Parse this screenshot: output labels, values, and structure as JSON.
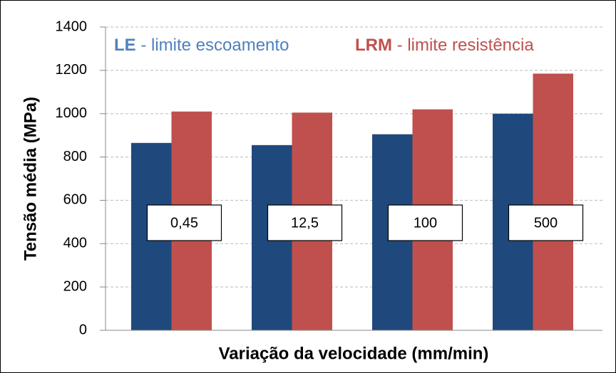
{
  "chart_data": {
    "type": "bar",
    "ylabel": "Tensão média (MPa)",
    "xlabel": "Variação da velocidade (mm/min)",
    "categories": [
      "0,45",
      "12,5",
      "100",
      "500"
    ],
    "series": [
      {
        "name": "LE",
        "legend_text": " - limite escoamento",
        "color": "#1f497d",
        "text_color": "#4f81bd",
        "values": [
          865,
          855,
          905,
          1000
        ]
      },
      {
        "name": "LRM",
        "legend_text": " - limite resistência",
        "color": "#c0504d",
        "text_color": "#c0504d",
        "values": [
          1010,
          1005,
          1020,
          1185
        ]
      }
    ],
    "ylim": [
      0,
      1400
    ],
    "yticks": [
      0,
      200,
      400,
      600,
      800,
      1000,
      1200,
      1400
    ],
    "grid": true
  }
}
